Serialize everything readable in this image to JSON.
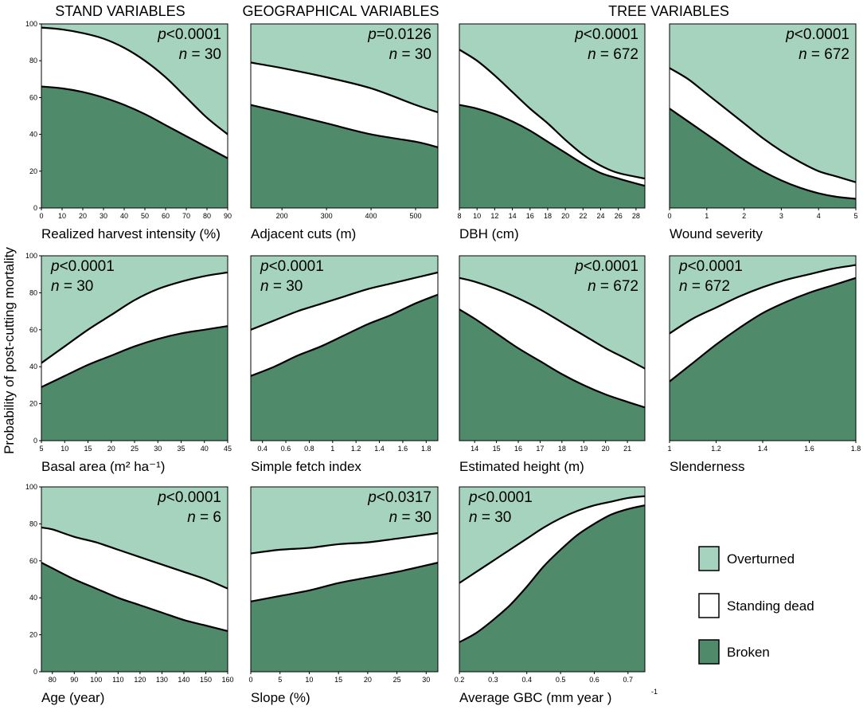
{
  "headers": {
    "stand": "STAND VARIABLES",
    "geo": "GEOGRAPHICAL VARIABLES",
    "tree": "TREE VARIABLES"
  },
  "y_axis_label": "Probability of post-cutting mortality",
  "colors": {
    "overturned": "#a6d3bd",
    "standing_dead": "#ffffff",
    "broken": "#4f8b6a",
    "line": "#000000"
  },
  "legend": [
    {
      "key": "overturned",
      "label": "Overturned"
    },
    {
      "key": "standing_dead",
      "label": "Standing dead"
    },
    {
      "key": "broken",
      "label": "Broken"
    }
  ],
  "chart_data": [
    {
      "type": "area",
      "id": "p1",
      "xlabel": "Realized harvest intensity (%)",
      "xlim": [
        0,
        90
      ],
      "xticks": [
        "0",
        "10",
        "20",
        "30",
        "40",
        "50",
        "60",
        "70",
        "80",
        "90"
      ],
      "ylim": [
        0,
        100
      ],
      "yticks": [
        "0",
        "20",
        "40",
        "60",
        "80",
        "100"
      ],
      "p": "p<0.0001",
      "n": "n = 30",
      "ann_pos": "top-right",
      "x": [
        0,
        10,
        20,
        30,
        40,
        50,
        60,
        70,
        80,
        90
      ],
      "broken": [
        66,
        65,
        63,
        60,
        56,
        51,
        45,
        39,
        33,
        27
      ],
      "cumulative_standing_dead": [
        98,
        97,
        95,
        92,
        87,
        80,
        71,
        60,
        49,
        40
      ]
    },
    {
      "type": "area",
      "id": "p2",
      "xlabel": "Adjacent cuts (m)",
      "xlim": [
        130,
        550
      ],
      "xticks": [
        "200",
        "300",
        "400",
        "500"
      ],
      "ylim": [
        0,
        100
      ],
      "yticks": [],
      "p": "p=0.0126",
      "n": "n = 30",
      "ann_pos": "top-right",
      "x": [
        130,
        200,
        300,
        400,
        500,
        550
      ],
      "broken": [
        56,
        52,
        46,
        40,
        36,
        33
      ],
      "cumulative_standing_dead": [
        79,
        76,
        71,
        65,
        56,
        52
      ]
    },
    {
      "type": "area",
      "id": "p3",
      "xlabel": "DBH (cm)",
      "xlim": [
        8,
        29
      ],
      "xticks": [
        "8",
        "10",
        "12",
        "14",
        "16",
        "18",
        "20",
        "22",
        "24",
        "26",
        "28"
      ],
      "ylim": [
        0,
        100
      ],
      "yticks": [],
      "p": "p<0.0001",
      "n": "n = 672",
      "ann_pos": "top-right",
      "x": [
        8,
        10,
        12,
        14,
        16,
        18,
        20,
        22,
        24,
        26,
        29
      ],
      "broken": [
        56,
        54,
        51,
        47,
        42,
        36,
        30,
        24,
        19,
        16,
        12
      ],
      "cumulative_standing_dead": [
        86,
        80,
        72,
        63,
        54,
        46,
        37,
        29,
        23,
        19,
        16
      ]
    },
    {
      "type": "area",
      "id": "p4",
      "xlabel": "Wound severity",
      "xlim": [
        0,
        5
      ],
      "xticks": [
        "0",
        "1",
        "2",
        "3",
        "4",
        "5"
      ],
      "ylim": [
        0,
        100
      ],
      "yticks": [],
      "p": "p<0.0001",
      "n": "n = 672",
      "ann_pos": "top-right",
      "x": [
        0,
        0.5,
        1,
        1.5,
        2,
        2.5,
        3,
        3.5,
        4,
        4.5,
        5
      ],
      "broken": [
        54,
        47,
        40,
        33,
        26,
        20,
        15,
        11,
        8,
        6,
        5
      ],
      "cumulative_standing_dead": [
        76,
        70,
        62,
        54,
        46,
        38,
        31,
        25,
        20,
        17,
        14
      ]
    },
    {
      "type": "area",
      "id": "p5",
      "xlabel": "Basal area (m² ha⁻¹)",
      "xlim": [
        5,
        45
      ],
      "xticks": [
        "5",
        "10",
        "15",
        "20",
        "25",
        "30",
        "35",
        "40",
        "45"
      ],
      "ylim": [
        0,
        100
      ],
      "yticks": [
        "0",
        "20",
        "40",
        "60",
        "80",
        "100"
      ],
      "p": "p<0.0001",
      "n": "n = 30",
      "ann_pos": "top-left",
      "x": [
        5,
        10,
        15,
        20,
        25,
        30,
        35,
        40,
        45
      ],
      "broken": [
        29,
        35,
        41,
        46,
        51,
        55,
        58,
        60,
        62
      ],
      "cumulative_standing_dead": [
        42,
        51,
        60,
        68,
        76,
        82,
        86,
        89,
        91
      ]
    },
    {
      "type": "area",
      "id": "p6",
      "xlabel": "Simple fetch index",
      "xlim": [
        0.3,
        1.9
      ],
      "xticks": [
        "0.4",
        "0.6",
        "0.8",
        "1",
        "1.2",
        "1.4",
        "1.6",
        "1.8"
      ],
      "ylim": [
        0,
        100
      ],
      "yticks": [],
      "p": "p<0.0001",
      "n": "n = 30",
      "ann_pos": "top-left",
      "x": [
        0.3,
        0.5,
        0.7,
        0.9,
        1.1,
        1.3,
        1.5,
        1.7,
        1.9
      ],
      "broken": [
        35,
        40,
        46,
        51,
        57,
        63,
        68,
        74,
        79
      ],
      "cumulative_standing_dead": [
        60,
        65,
        70,
        74,
        78,
        82,
        85,
        88,
        91
      ]
    },
    {
      "type": "area",
      "id": "p7",
      "xlabel": "Estimated height (m)",
      "xlim": [
        13.3,
        21.8
      ],
      "xticks": [
        "14",
        "15",
        "16",
        "17",
        "18",
        "19",
        "20",
        "21"
      ],
      "ylim": [
        0,
        100
      ],
      "yticks": [],
      "p": "p<0.0001",
      "n": "n = 672",
      "ann_pos": "top-right",
      "x": [
        13.3,
        14,
        15,
        16,
        17,
        18,
        19,
        20,
        21,
        21.8
      ],
      "broken": [
        71,
        66,
        58,
        50,
        43,
        36,
        30,
        25,
        21,
        18
      ],
      "cumulative_standing_dead": [
        88,
        86,
        82,
        77,
        71,
        64,
        57,
        50,
        44,
        39
      ]
    },
    {
      "type": "area",
      "id": "p8",
      "xlabel": "Slenderness",
      "xlim": [
        1,
        1.8
      ],
      "xticks": [
        "1",
        "1.2",
        "1.4",
        "1.6",
        "1.8"
      ],
      "ylim": [
        0,
        100
      ],
      "yticks": [],
      "p": "p<0.0001",
      "n": "n = 672",
      "ann_pos": "top-left",
      "x": [
        1,
        1.1,
        1.2,
        1.3,
        1.4,
        1.5,
        1.6,
        1.7,
        1.8
      ],
      "broken": [
        32,
        42,
        52,
        61,
        69,
        75,
        80,
        84,
        88
      ],
      "cumulative_standing_dead": [
        58,
        66,
        72,
        78,
        83,
        87,
        90,
        93,
        95
      ]
    },
    {
      "type": "area",
      "id": "p9",
      "xlabel": "Age (year)",
      "xlim": [
        75,
        160
      ],
      "xticks": [
        "80",
        "90",
        "100",
        "110",
        "120",
        "130",
        "140",
        "150",
        "160"
      ],
      "ylim": [
        0,
        100
      ],
      "yticks": [
        "0",
        "20",
        "40",
        "60",
        "80",
        "100"
      ],
      "p": "p<0.0001",
      "n": "n = 6",
      "ann_pos": "top-right",
      "x": [
        75,
        80,
        90,
        100,
        110,
        120,
        130,
        140,
        150,
        160
      ],
      "broken": [
        59,
        56,
        50,
        45,
        40,
        36,
        32,
        28,
        25,
        22
      ],
      "cumulative_standing_dead": [
        78,
        77,
        73,
        70,
        66,
        62,
        58,
        54,
        50,
        45
      ]
    },
    {
      "type": "area",
      "id": "p10",
      "xlabel": "Slope (%)",
      "xlim": [
        0,
        32
      ],
      "xticks": [
        "0",
        "5",
        "10",
        "15",
        "20",
        "25",
        "30"
      ],
      "ylim": [
        0,
        100
      ],
      "yticks": [],
      "p": "p<0.0317",
      "n": "n = 30",
      "ann_pos": "top-right",
      "x": [
        0,
        5,
        10,
        15,
        20,
        25,
        32
      ],
      "broken": [
        38,
        41,
        44,
        48,
        51,
        54,
        59
      ],
      "cumulative_standing_dead": [
        64,
        66,
        67,
        69,
        70,
        72,
        75
      ]
    },
    {
      "type": "area",
      "id": "p11",
      "xlabel": "Average GBC (mm year   )",
      "xlabel_sup": "-1",
      "xlim": [
        0.2,
        0.75
      ],
      "xticks": [
        "0.2",
        "0.3",
        "0.4",
        "0.5",
        "0.6",
        "0.7"
      ],
      "ylim": [
        0,
        100
      ],
      "yticks": [],
      "p": "p<0.0001",
      "n": "n = 30",
      "ann_pos": "top-left",
      "x": [
        0.2,
        0.25,
        0.3,
        0.35,
        0.4,
        0.45,
        0.5,
        0.55,
        0.6,
        0.65,
        0.7,
        0.75
      ],
      "broken": [
        16,
        21,
        28,
        36,
        46,
        57,
        66,
        74,
        80,
        85,
        88,
        90
      ],
      "cumulative_standing_dead": [
        48,
        54,
        60,
        66,
        72,
        78,
        83,
        87,
        90,
        92,
        94,
        95
      ]
    }
  ]
}
